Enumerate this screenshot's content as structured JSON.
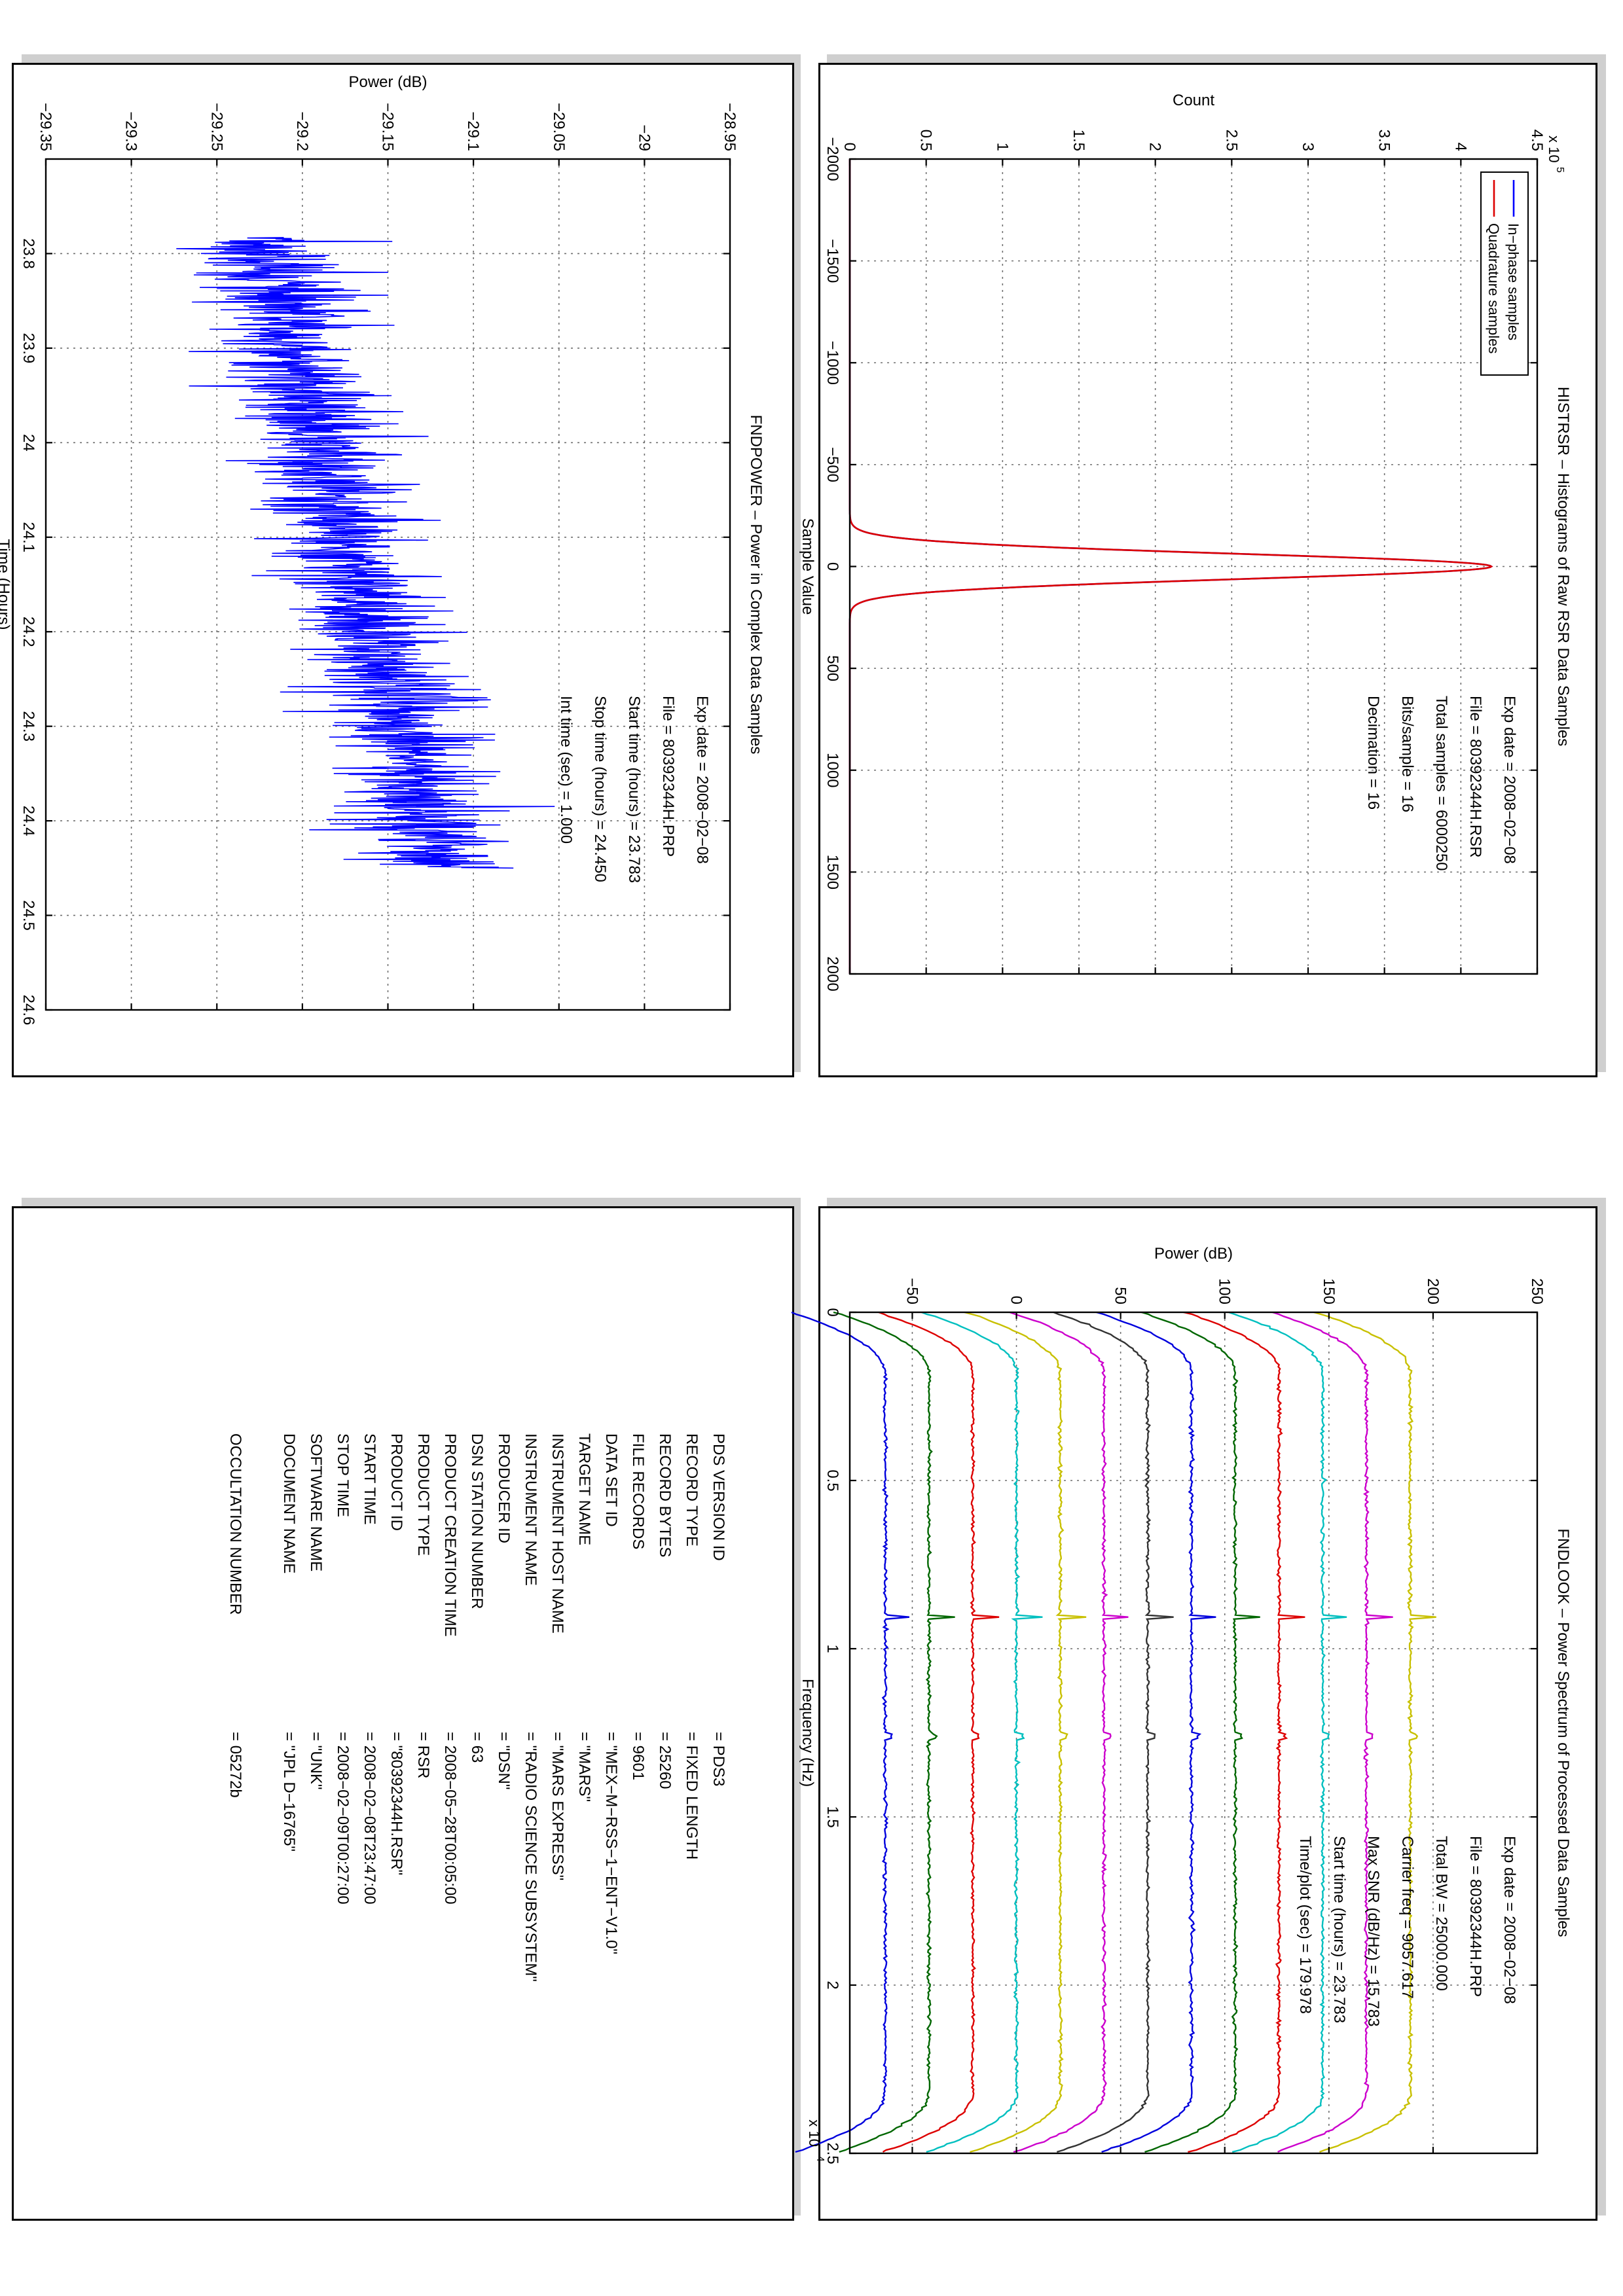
{
  "histrsr": {
    "title": "HISTRSR – Histograms of Raw RSR Data Samples",
    "info": [
      "Exp date = 2008−02−08",
      "File = 80392344H.RSR",
      "Total samples =   6000250",
      "Bits/sample   =          16",
      "Decimation   =          16"
    ],
    "chart_data": {
      "type": "line",
      "xlabel": "Sample Value",
      "ylabel": "Count",
      "xlim": [
        -2000,
        2000
      ],
      "ylim": [
        0,
        4.5
      ],
      "y_exponent_label": "x 10",
      "y_exponent_power": "5",
      "x_ticks": [
        -2000,
        -1500,
        -1000,
        -500,
        0,
        500,
        1000,
        1500,
        2000
      ],
      "x_tick_labels": [
        "−2000",
        "−1500",
        "−1000",
        "−500",
        "0",
        "500",
        "1000",
        "1500",
        "2000"
      ],
      "y_ticks": [
        0,
        0.5,
        1,
        1.5,
        2,
        2.5,
        3,
        3.5,
        4,
        4.5
      ],
      "y_tick_labels": [
        "0",
        "0.5",
        "1",
        "1.5",
        "2",
        "2.5",
        "3",
        "3.5",
        "4",
        "4.5"
      ],
      "grid": true,
      "legend_position": "top-left",
      "series": [
        {
          "name": "In−phase samples",
          "color": "#0000ff",
          "peak": 4.2,
          "sigma": 62
        },
        {
          "name": "Quadrature samples",
          "color": "#dd0000",
          "peak": 4.2,
          "sigma": 62
        }
      ]
    }
  },
  "fndpower": {
    "title": "FNDPOWER – Power in Complex Data Samples",
    "info": [
      "Exp date = 2008−02−08",
      "File = 80392344H.PRP",
      "Start time (hours) = 23.783",
      "Stop time (hours) =  24.450",
      "Int time (sec) =     1.000"
    ],
    "chart_data": {
      "type": "line",
      "xlabel": "Time (Hours)",
      "ylabel": "Power (dB)",
      "xlim": [
        23.7,
        24.6
      ],
      "ylim": [
        -29.35,
        -28.95
      ],
      "x_ticks": [
        23.8,
        23.9,
        24,
        24.1,
        24.2,
        24.3,
        24.4,
        24.5,
        24.6
      ],
      "x_tick_labels": [
        "23.8",
        "23.9",
        "24",
        "24.1",
        "24.2",
        "24.3",
        "24.4",
        "24.5",
        "24.6"
      ],
      "y_ticks": [
        -29.35,
        -29.3,
        -29.25,
        -29.2,
        -29.15,
        -29.1,
        -29.05,
        -29,
        -28.95
      ],
      "y_tick_labels": [
        "−29.35",
        "−29.3",
        "−29.25",
        "−29.2",
        "−29.15",
        "−29.1",
        "−29.05",
        "−29",
        "−28.95"
      ],
      "grid": true,
      "series": [
        {
          "color": "#0000ff",
          "x_start": 23.783,
          "x_end": 24.45,
          "y_start": -29.225,
          "y_end": -29.12,
          "noise": 0.022
        }
      ]
    }
  },
  "fndlook": {
    "title": "FNDLOOK – Power Spectrum of Processed Data Samples",
    "info": [
      "Exp date = 2008−02−08",
      "File = 80392344H.PRP",
      "Total BW =     25000.000",
      "Carrier freq =   9057.617",
      "Max SNR (dB/Hz) =    15.783",
      "Start time (hours) =   23.783",
      "Time/plot (sec) =    179.978"
    ],
    "chart_data": {
      "type": "line",
      "xlabel": "Frequency (Hz)",
      "ylabel": "Power (dB)",
      "xlim": [
        0,
        2.5
      ],
      "ylim": [
        -80,
        250
      ],
      "x_exponent_label": "x 10",
      "x_exponent_power": "4",
      "x_ticks": [
        0,
        0.5,
        1,
        1.5,
        2,
        2.5
      ],
      "x_tick_labels": [
        "0",
        "0.5",
        "1",
        "1.5",
        "2",
        "2.5"
      ],
      "y_ticks": [
        -50,
        0,
        50,
        100,
        150,
        200,
        250
      ],
      "y_tick_labels": [
        "−50",
        "0",
        "50",
        "100",
        "150",
        "200",
        "250"
      ],
      "grid": true,
      "series": [
        {
          "color": "#0000dd",
          "level": -63
        },
        {
          "color": "#006600",
          "level": -42
        },
        {
          "color": "#dd0000",
          "level": -21
        },
        {
          "color": "#00bfbf",
          "level": 0
        },
        {
          "color": "#c8c000",
          "level": 21
        },
        {
          "color": "#cc00cc",
          "level": 42
        },
        {
          "color": "#333333",
          "level": 63
        },
        {
          "color": "#0000dd",
          "level": 84
        },
        {
          "color": "#006600",
          "level": 105
        },
        {
          "color": "#dd0000",
          "level": 126
        },
        {
          "color": "#00bfbf",
          "level": 147
        },
        {
          "color": "#cc00cc",
          "level": 168
        },
        {
          "color": "#c8c000",
          "level": 189
        }
      ]
    }
  },
  "pds": {
    "rows": [
      {
        "label": "PDS VERSION ID",
        "value": "=  PDS3"
      },
      {
        "label": "RECORD TYPE",
        "value": "=  FIXED LENGTH"
      },
      {
        "label": "RECORD BYTES",
        "value": "=  25260"
      },
      {
        "label": "FILE RECORDS",
        "value": "=  9601"
      },
      {
        "label": "DATA SET ID",
        "value": "=  \"MEX−M−RSS−1−ENT−V1.0\""
      },
      {
        "label": "TARGET NAME",
        "value": "=  \"MARS\""
      },
      {
        "label": "INSTRUMENT HOST NAME",
        "value": "=  \"MARS EXPRESS\""
      },
      {
        "label": "INSTRUMENT NAME",
        "value": "=  \"RADIO SCIENCE SUBSYSTEM\""
      },
      {
        "label": "PRODUCER ID",
        "value": "=  \"DSN\""
      },
      {
        "label": "DSN STATION NUMBER",
        "value": "=  63"
      },
      {
        "label": "PRODUCT CREATION TIME",
        "value": "=  2008−05−28T00:05:00"
      },
      {
        "label": "PRODUCT TYPE",
        "value": "=  RSR"
      },
      {
        "label": "PRODUCT ID",
        "value": "=  \"80392344H.RSR\""
      },
      {
        "label": "START TIME",
        "value": "=  2008−02−08T23:47:00"
      },
      {
        "label": "STOP TIME",
        "value": "=  2008−02−09T00:27:00"
      },
      {
        "label": "SOFTWARE NAME",
        "value": "=  \"UNK\""
      },
      {
        "label": "DOCUMENT NAME",
        "value": "=  \"JPL D−16765\""
      },
      {
        "label": "",
        "value": ""
      },
      {
        "label": "OCCULTATION NUMBER",
        "value": "=  05272b"
      }
    ]
  }
}
